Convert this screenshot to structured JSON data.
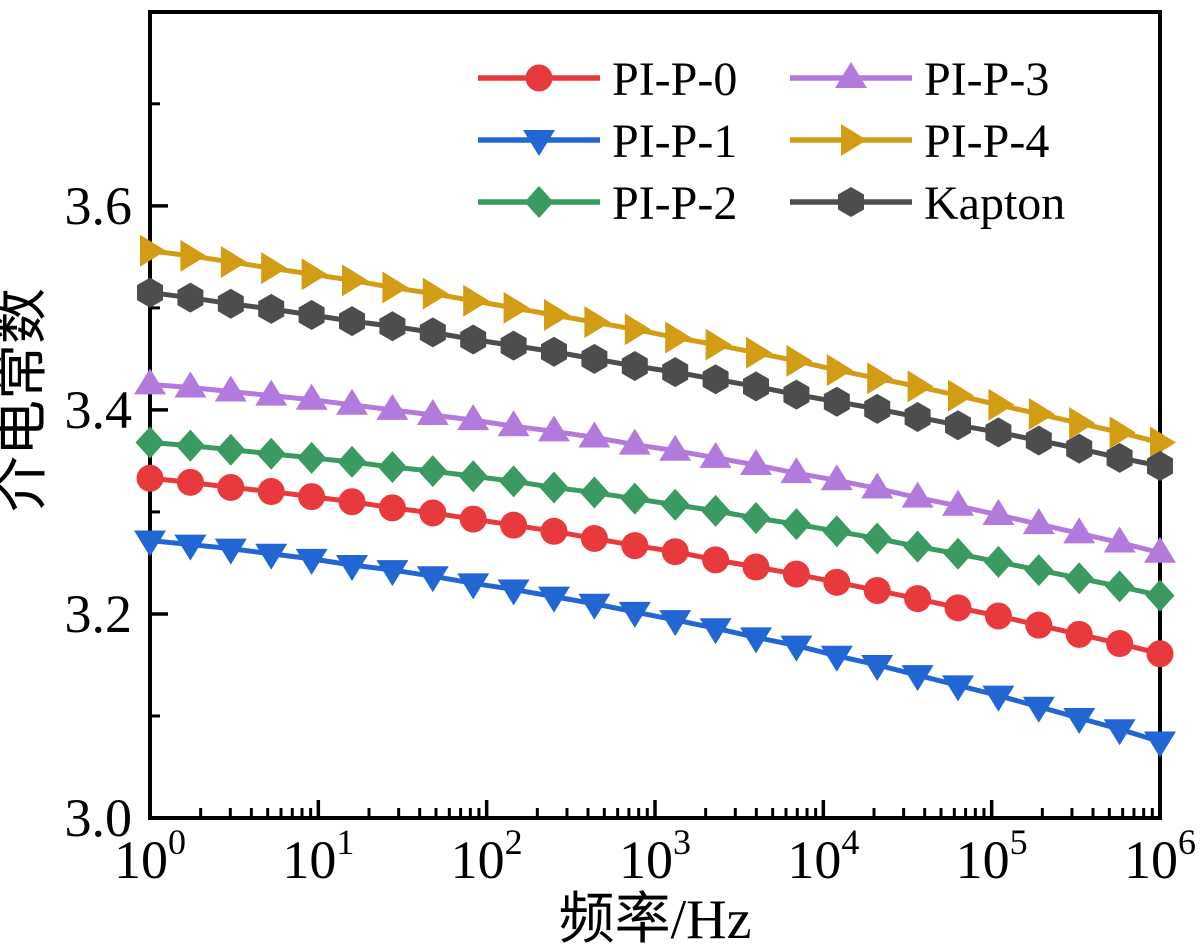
{
  "figure": {
    "background": "#ffffff",
    "frame_color": "#000000",
    "text_color": "#000000"
  },
  "chart_data": {
    "type": "line",
    "title": "",
    "xlabel": "频率/Hz",
    "ylabel": "介电常数",
    "x_scale": "log",
    "x_base_label": "10",
    "x_tick_exponents": [
      0,
      1,
      2,
      3,
      4,
      5,
      6
    ],
    "xlim_log10": [
      0,
      6
    ],
    "ylim": [
      3.0,
      3.79
    ],
    "y_tick_labels": [
      "3.0",
      "3.2",
      "3.4",
      "3.6"
    ],
    "y_major_ticks": [
      3.0,
      3.2,
      3.4,
      3.6
    ],
    "y_minor_ticks": [
      3.1,
      3.3,
      3.5,
      3.7
    ],
    "grid": false,
    "legend": {
      "columns": 2,
      "column_major": true,
      "position": "top-center-inside",
      "frame": false
    },
    "log10_x": [
      0,
      0.24,
      0.48,
      0.72,
      0.96,
      1.2,
      1.44,
      1.68,
      1.92,
      2.16,
      2.4,
      2.64,
      2.88,
      3.12,
      3.36,
      3.6,
      3.84,
      4.08,
      4.32,
      4.56,
      4.8,
      5.04,
      5.28,
      5.52,
      5.76,
      6
    ],
    "series": [
      {
        "name": "PI-P-0",
        "color": "#e8393c",
        "marker": "circle",
        "values": [
          3.333,
          3.329,
          3.324,
          3.32,
          3.315,
          3.31,
          3.304,
          3.299,
          3.293,
          3.287,
          3.281,
          3.274,
          3.267,
          3.261,
          3.253,
          3.246,
          3.239,
          3.231,
          3.223,
          3.215,
          3.206,
          3.198,
          3.189,
          3.18,
          3.171,
          3.161
        ]
      },
      {
        "name": "PI-P-1",
        "color": "#2166d2",
        "marker": "triangle-down",
        "values": [
          3.272,
          3.268,
          3.264,
          3.259,
          3.254,
          3.248,
          3.243,
          3.237,
          3.23,
          3.224,
          3.217,
          3.21,
          3.202,
          3.194,
          3.186,
          3.177,
          3.169,
          3.159,
          3.15,
          3.14,
          3.13,
          3.12,
          3.109,
          3.098,
          3.087,
          3.075
        ]
      },
      {
        "name": "PI-P-2",
        "color": "#3a9a62",
        "marker": "diamond",
        "values": [
          3.368,
          3.365,
          3.361,
          3.357,
          3.353,
          3.349,
          3.344,
          3.34,
          3.335,
          3.33,
          3.324,
          3.319,
          3.313,
          3.307,
          3.301,
          3.294,
          3.288,
          3.281,
          3.274,
          3.266,
          3.259,
          3.251,
          3.243,
          3.235,
          3.227,
          3.218
        ]
      },
      {
        "name": "PI-P-3",
        "color": "#b37add",
        "marker": "triangle-up",
        "values": [
          3.425,
          3.422,
          3.418,
          3.414,
          3.41,
          3.405,
          3.4,
          3.395,
          3.39,
          3.384,
          3.379,
          3.373,
          3.366,
          3.36,
          3.353,
          3.346,
          3.338,
          3.331,
          3.323,
          3.314,
          3.306,
          3.297,
          3.288,
          3.279,
          3.27,
          3.26
        ]
      },
      {
        "name": "PI-P-4",
        "color": "#d29c15",
        "marker": "triangle-right",
        "values": [
          3.556,
          3.551,
          3.545,
          3.539,
          3.533,
          3.527,
          3.52,
          3.514,
          3.507,
          3.5,
          3.493,
          3.486,
          3.479,
          3.471,
          3.464,
          3.456,
          3.448,
          3.439,
          3.431,
          3.423,
          3.414,
          3.405,
          3.396,
          3.387,
          3.378,
          3.368
        ]
      },
      {
        "name": "Kapton",
        "color": "#4d4d4d",
        "marker": "hexagon",
        "values": [
          3.515,
          3.51,
          3.504,
          3.499,
          3.493,
          3.487,
          3.482,
          3.476,
          3.469,
          3.463,
          3.457,
          3.45,
          3.443,
          3.437,
          3.43,
          3.423,
          3.415,
          3.408,
          3.401,
          3.393,
          3.385,
          3.378,
          3.37,
          3.362,
          3.353,
          3.345
        ]
      }
    ]
  }
}
